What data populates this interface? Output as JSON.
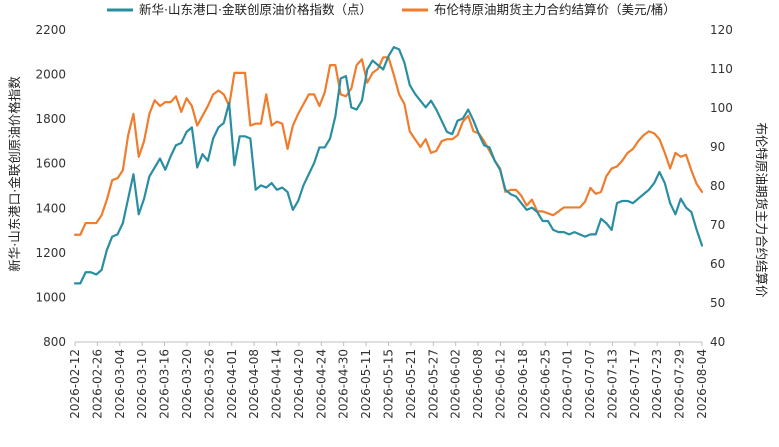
{
  "chart_data": {
    "type": "line",
    "legend_position": "top",
    "grid": false,
    "x_tick_labels": [
      "2026-02-12",
      "2026-02-26",
      "2026-03-04",
      "2026-03-10",
      "2026-03-16",
      "2026-03-20",
      "2026-03-26",
      "2026-04-01",
      "2026-04-08",
      "2026-04-14",
      "2026-04-20",
      "2026-04-24",
      "2026-04-30",
      "2026-05-11",
      "2026-05-15",
      "2026-05-21",
      "2026-05-27",
      "2026-06-02",
      "2026-06-08",
      "2026-06-12",
      "2026-06-18",
      "2026-06-25",
      "2026-07-01",
      "2026-07-07",
      "2026-07-13",
      "2026-07-17",
      "2026-07-23",
      "2026-07-29",
      "2026-08-04"
    ],
    "y_left": {
      "label": "新华·山东港口·金联创原油价格指数",
      "min": 800,
      "max": 2200,
      "ticks": [
        800,
        1000,
        1200,
        1400,
        1600,
        1800,
        2000,
        2200
      ]
    },
    "y_right": {
      "label": "布伦特原油期货主力合约结算价",
      "min": 40,
      "max": 120,
      "ticks": [
        40,
        50,
        60,
        70,
        80,
        90,
        100,
        110,
        120
      ]
    },
    "series": [
      {
        "name": "新华·山东港口·金联创原油价格指数（点）",
        "axis": "left",
        "color": "#2a8ea2",
        "values": [
          1063,
          1063,
          1113,
          1113,
          1103,
          1123,
          1213,
          1273,
          1283,
          1333,
          1443,
          1553,
          1373,
          1443,
          1543,
          1583,
          1623,
          1573,
          1633,
          1683,
          1693,
          1743,
          1763,
          1583,
          1643,
          1613,
          1713,
          1763,
          1783,
          1873,
          1593,
          1723,
          1723,
          1713,
          1483,
          1503,
          1493,
          1513,
          1483,
          1493,
          1473,
          1393,
          1433,
          1503,
          1553,
          1603,
          1673,
          1673,
          1713,
          1813,
          1983,
          1993,
          1853,
          1843,
          1883,
          2023,
          2063,
          2043,
          2023,
          2083,
          2123,
          2113,
          2053,
          1953,
          1913,
          1883,
          1853,
          1883,
          1843,
          1793,
          1743,
          1733,
          1793,
          1803,
          1843,
          1793,
          1733,
          1683,
          1673,
          1613,
          1573,
          1483,
          1463,
          1453,
          1423,
          1393,
          1403,
          1383,
          1343,
          1343,
          1303,
          1293,
          1293,
          1283,
          1293,
          1283,
          1273,
          1283,
          1283,
          1353,
          1333,
          1303,
          1423,
          1433,
          1433,
          1423,
          1443,
          1463,
          1483,
          1513,
          1563,
          1513,
          1423,
          1373,
          1443,
          1403,
          1383,
          1303,
          1233
        ]
      },
      {
        "name": "布伦特原油期货主力合约结算价（美元/桶）",
        "axis": "right",
        "color": "#ef7d2d",
        "values": [
          67.5,
          67.5,
          70.5,
          70.5,
          70.5,
          72.5,
          76.5,
          81.5,
          82.0,
          84.0,
          93.0,
          98.5,
          87.5,
          91.5,
          98.5,
          102.0,
          100.5,
          101.5,
          101.5,
          103.0,
          99.0,
          102.5,
          100.5,
          95.5,
          98.0,
          100.5,
          103.5,
          104.5,
          103.5,
          100.5,
          109.0,
          109.0,
          109.0,
          95.5,
          96.0,
          96.0,
          103.5,
          95.5,
          96.5,
          96.0,
          89.5,
          95.5,
          98.5,
          101.0,
          103.5,
          103.5,
          100.5,
          104.0,
          111.0,
          111.0,
          103.5,
          103.0,
          105.0,
          111.0,
          112.5,
          106.5,
          109.0,
          110.0,
          113.0,
          113.0,
          108.5,
          103.5,
          101.0,
          94.0,
          92.0,
          90.0,
          92.0,
          88.5,
          89.0,
          91.5,
          92.0,
          92.0,
          93.0,
          96.5,
          98.0,
          94.0,
          93.5,
          91.5,
          89.0,
          86.5,
          84.5,
          78.5,
          79.0,
          79.0,
          77.5,
          75.0,
          76.5,
          73.5,
          73.5,
          73.0,
          72.5,
          73.5,
          74.5,
          74.5,
          74.5,
          74.5,
          76.0,
          79.5,
          78.0,
          78.5,
          82.5,
          84.5,
          85.0,
          86.5,
          88.5,
          89.5,
          91.5,
          93.0,
          94.0,
          93.5,
          92.0,
          88.5,
          84.5,
          88.5,
          87.5,
          88.0,
          84.0,
          80.5,
          78.5
        ]
      }
    ]
  }
}
